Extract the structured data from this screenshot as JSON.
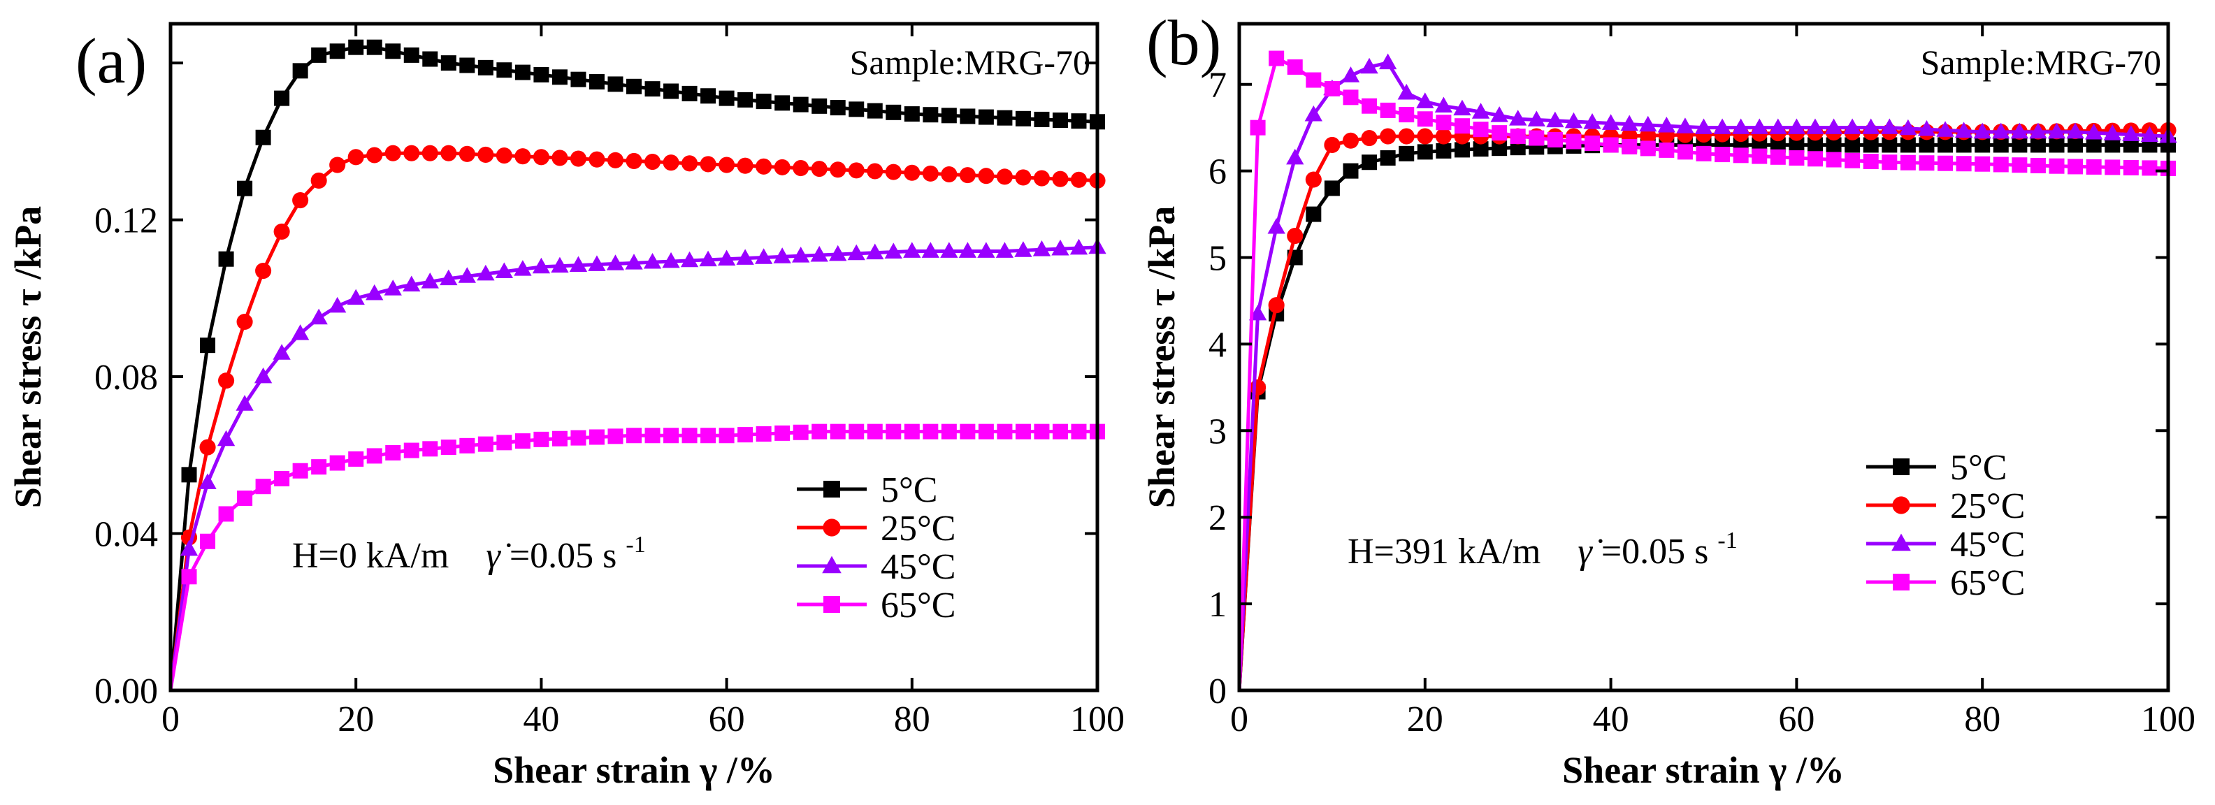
{
  "chart_data": [
    {
      "type": "line",
      "panel_label": "(a)",
      "sample": "Sample:MRG-70",
      "condition": {
        "field": "H=0 kA/m",
        "rate_symbol": "γ̇",
        "rate": "=0.05 s",
        "rate_exp": "-1"
      },
      "xlabel": "Shear strain γ /%",
      "ylabel": "Shear stress τ /kPa",
      "xlim": [
        0,
        100
      ],
      "ylim": [
        0,
        0.17
      ],
      "xticks": [
        0,
        20,
        40,
        60,
        80,
        100
      ],
      "xtick_labels": [
        "0",
        "20",
        "40",
        "60",
        "80",
        "100"
      ],
      "yticks": [
        0,
        0.04,
        0.08,
        0.12,
        0.16
      ],
      "ytick_labels": [
        "0.00",
        "0.04",
        "0.08",
        "0.12",
        ""
      ],
      "legend_position": "lower-right",
      "series": [
        {
          "name": "5°C",
          "color": "#000000",
          "marker": "square",
          "points": [
            [
              0,
              0
            ],
            [
              2,
              0.055
            ],
            [
              4,
              0.088
            ],
            [
              6,
              0.11
            ],
            [
              8,
              0.128
            ],
            [
              10,
              0.141
            ],
            [
              12,
              0.151
            ],
            [
              14,
              0.158
            ],
            [
              16,
              0.162
            ],
            [
              18,
              0.163
            ],
            [
              20,
              0.164
            ],
            [
              22,
              0.164
            ],
            [
              24,
              0.163
            ],
            [
              26,
              0.162
            ],
            [
              28,
              0.161
            ],
            [
              30,
              0.16
            ],
            [
              40,
              0.157
            ],
            [
              50,
              0.154
            ],
            [
              60,
              0.151
            ],
            [
              70,
              0.149
            ],
            [
              80,
              0.147
            ],
            [
              90,
              0.146
            ],
            [
              100,
              0.145
            ]
          ]
        },
        {
          "name": "25°C",
          "color": "#ff0000",
          "marker": "circle",
          "points": [
            [
              0,
              0
            ],
            [
              2,
              0.039
            ],
            [
              4,
              0.062
            ],
            [
              6,
              0.079
            ],
            [
              8,
              0.094
            ],
            [
              10,
              0.107
            ],
            [
              12,
              0.117
            ],
            [
              14,
              0.125
            ],
            [
              16,
              0.13
            ],
            [
              18,
              0.134
            ],
            [
              20,
              0.136
            ],
            [
              24,
              0.137
            ],
            [
              30,
              0.137
            ],
            [
              40,
              0.136
            ],
            [
              50,
              0.135
            ],
            [
              60,
              0.134
            ],
            [
              70,
              0.133
            ],
            [
              80,
              0.132
            ],
            [
              90,
              0.131
            ],
            [
              100,
              0.13
            ]
          ]
        },
        {
          "name": "45°C",
          "color": "#9900ff",
          "marker": "triangle",
          "points": [
            [
              0,
              0
            ],
            [
              2,
              0.036
            ],
            [
              4,
              0.053
            ],
            [
              6,
              0.064
            ],
            [
              8,
              0.073
            ],
            [
              10,
              0.08
            ],
            [
              12,
              0.086
            ],
            [
              14,
              0.091
            ],
            [
              16,
              0.095
            ],
            [
              18,
              0.098
            ],
            [
              20,
              0.1
            ],
            [
              25,
              0.103
            ],
            [
              30,
              0.105
            ],
            [
              40,
              0.108
            ],
            [
              50,
              0.109
            ],
            [
              60,
              0.11
            ],
            [
              70,
              0.111
            ],
            [
              80,
              0.112
            ],
            [
              90,
              0.112
            ],
            [
              100,
              0.113
            ]
          ]
        },
        {
          "name": "65°C",
          "color": "#ff00ff",
          "marker": "square",
          "points": [
            [
              0,
              0
            ],
            [
              2,
              0.029
            ],
            [
              4,
              0.038
            ],
            [
              6,
              0.045
            ],
            [
              8,
              0.049
            ],
            [
              10,
              0.052
            ],
            [
              12,
              0.054
            ],
            [
              14,
              0.056
            ],
            [
              16,
              0.057
            ],
            [
              18,
              0.058
            ],
            [
              20,
              0.059
            ],
            [
              25,
              0.061
            ],
            [
              30,
              0.062
            ],
            [
              40,
              0.064
            ],
            [
              50,
              0.065
            ],
            [
              60,
              0.065
            ],
            [
              70,
              0.066
            ],
            [
              80,
              0.066
            ],
            [
              90,
              0.066
            ],
            [
              100,
              0.066
            ]
          ]
        }
      ]
    },
    {
      "type": "line",
      "panel_label": "(b)",
      "sample": "Sample:MRG-70",
      "condition": {
        "field": "H=391 kA/m",
        "rate_symbol": "γ̇",
        "rate": "=0.05 s",
        "rate_exp": "-1"
      },
      "xlabel": "Shear strain γ /%",
      "ylabel": "Shear stress τ /kPa",
      "xlim": [
        0,
        100
      ],
      "ylim": [
        0,
        7.7
      ],
      "xticks": [
        0,
        20,
        40,
        60,
        80,
        100
      ],
      "xtick_labels": [
        "0",
        "20",
        "40",
        "60",
        "80",
        "100"
      ],
      "yticks": [
        0,
        1,
        2,
        3,
        4,
        5,
        6,
        7
      ],
      "ytick_labels": [
        "0",
        "1",
        "2",
        "3",
        "4",
        "5",
        "6",
        "7"
      ],
      "legend_position": "lower-right",
      "series": [
        {
          "name": "5°C",
          "color": "#000000",
          "marker": "square",
          "points": [
            [
              0,
              0
            ],
            [
              2,
              3.45
            ],
            [
              4,
              4.35
            ],
            [
              6,
              5.0
            ],
            [
              8,
              5.5
            ],
            [
              10,
              5.8
            ],
            [
              12,
              6.0
            ],
            [
              14,
              6.1
            ],
            [
              16,
              6.15
            ],
            [
              18,
              6.2
            ],
            [
              20,
              6.22
            ],
            [
              25,
              6.25
            ],
            [
              30,
              6.27
            ],
            [
              40,
              6.3
            ],
            [
              50,
              6.3
            ],
            [
              60,
              6.3
            ],
            [
              70,
              6.3
            ],
            [
              80,
              6.3
            ],
            [
              90,
              6.3
            ],
            [
              100,
              6.3
            ]
          ]
        },
        {
          "name": "25°C",
          "color": "#ff0000",
          "marker": "circle",
          "points": [
            [
              0,
              0
            ],
            [
              2,
              3.5
            ],
            [
              4,
              4.45
            ],
            [
              6,
              5.25
            ],
            [
              8,
              5.9
            ],
            [
              10,
              6.3
            ],
            [
              12,
              6.35
            ],
            [
              14,
              6.38
            ],
            [
              16,
              6.4
            ],
            [
              18,
              6.4
            ],
            [
              20,
              6.4
            ],
            [
              25,
              6.4
            ],
            [
              30,
              6.4
            ],
            [
              40,
              6.4
            ],
            [
              50,
              6.42
            ],
            [
              60,
              6.44
            ],
            [
              70,
              6.45
            ],
            [
              80,
              6.45
            ],
            [
              90,
              6.46
            ],
            [
              100,
              6.47
            ]
          ]
        },
        {
          "name": "45°C",
          "color": "#9900ff",
          "marker": "triangle",
          "points": [
            [
              0,
              0
            ],
            [
              2,
              4.35
            ],
            [
              4,
              5.35
            ],
            [
              6,
              6.15
            ],
            [
              8,
              6.65
            ],
            [
              10,
              6.95
            ],
            [
              12,
              7.1
            ],
            [
              14,
              7.2
            ],
            [
              16,
              7.25
            ],
            [
              18,
              6.9
            ],
            [
              20,
              6.8
            ],
            [
              22,
              6.75
            ],
            [
              25,
              6.7
            ],
            [
              30,
              6.6
            ],
            [
              40,
              6.55
            ],
            [
              50,
              6.5
            ],
            [
              60,
              6.5
            ],
            [
              70,
              6.5
            ],
            [
              80,
              6.45
            ],
            [
              90,
              6.45
            ],
            [
              100,
              6.4
            ]
          ]
        },
        {
          "name": "65°C",
          "color": "#ff00ff",
          "marker": "square",
          "points": [
            [
              0,
              0
            ],
            [
              2,
              6.5
            ],
            [
              4,
              7.3
            ],
            [
              6,
              7.2
            ],
            [
              8,
              7.05
            ],
            [
              10,
              6.95
            ],
            [
              12,
              6.85
            ],
            [
              14,
              6.75
            ],
            [
              16,
              6.7
            ],
            [
              18,
              6.65
            ],
            [
              20,
              6.6
            ],
            [
              25,
              6.5
            ],
            [
              30,
              6.4
            ],
            [
              40,
              6.3
            ],
            [
              50,
              6.2
            ],
            [
              60,
              6.15
            ],
            [
              70,
              6.1
            ],
            [
              80,
              6.08
            ],
            [
              90,
              6.05
            ],
            [
              100,
              6.03
            ]
          ]
        }
      ]
    }
  ]
}
